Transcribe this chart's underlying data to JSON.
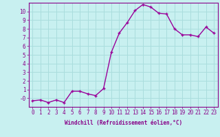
{
  "x": [
    0,
    1,
    2,
    3,
    4,
    5,
    6,
    7,
    8,
    9,
    10,
    11,
    12,
    13,
    14,
    15,
    16,
    17,
    18,
    19,
    20,
    21,
    22,
    23
  ],
  "y": [
    -0.3,
    -0.2,
    -0.5,
    -0.2,
    -0.5,
    0.8,
    0.8,
    0.5,
    0.3,
    1.1,
    5.3,
    7.5,
    8.7,
    10.1,
    10.8,
    10.5,
    9.8,
    9.7,
    8.0,
    7.3,
    7.3,
    7.1,
    8.2,
    7.5
  ],
  "line_color": "#990099",
  "marker": "+",
  "marker_size": 3,
  "bg_color": "#c8f0f0",
  "grid_color": "#aadddd",
  "xlabel": "Windchill (Refroidissement éolien,°C)",
  "xlim": [
    -0.5,
    23.5
  ],
  "ylim": [
    -1.0,
    11.0
  ],
  "ytick_vals": [
    0,
    1,
    2,
    3,
    4,
    5,
    6,
    7,
    8,
    9,
    10
  ],
  "ytick_labels": [
    "-0",
    "1",
    "2",
    "3",
    "4",
    "5",
    "6",
    "7",
    "8",
    "9",
    "10"
  ],
  "xtick_vals": [
    0,
    1,
    2,
    3,
    4,
    5,
    6,
    7,
    8,
    9,
    10,
    11,
    12,
    13,
    14,
    15,
    16,
    17,
    18,
    19,
    20,
    21,
    22,
    23
  ],
  "tick_color": "#880088",
  "label_color": "#880088",
  "label_fontsize": 5.5,
  "tick_fontsize": 5.5,
  "line_width": 1.0,
  "markeredgewidth": 1.0
}
